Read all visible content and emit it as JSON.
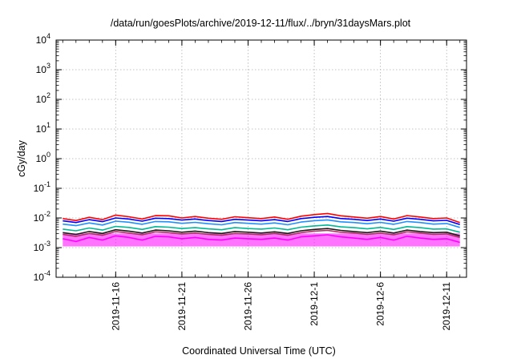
{
  "chart_data": {
    "type": "line",
    "title": "/data/run/goesPlots/archive/2019-12-11/flux/../bryn/31daysMars.plot",
    "xlabel": "Coordinated Universal Time (UTC)",
    "ylabel": "cGy/day",
    "yscale": "log",
    "ylim": [
      0.0001,
      10000
    ],
    "xlim": [
      "2019-11-11T12:00",
      "2019-12-12T12:00"
    ],
    "grid": true,
    "legend": "none",
    "x_ticks": [
      "2019-11-16",
      "2019-11-21",
      "2019-11-26",
      "2019-12-1",
      "2019-12-6",
      "2019-12-11"
    ],
    "y_ticks": [
      {
        "base": "10",
        "exp": "-4",
        "value": 0.0001
      },
      {
        "base": "10",
        "exp": "-3",
        "value": 0.001
      },
      {
        "base": "10",
        "exp": "-2",
        "value": 0.01
      },
      {
        "base": "10",
        "exp": "-1",
        "value": 0.1
      },
      {
        "base": "10",
        "exp": "0",
        "value": 1
      },
      {
        "base": "10",
        "exp": "1",
        "value": 10
      },
      {
        "base": "10",
        "exp": "2",
        "value": 100
      },
      {
        "base": "10",
        "exp": "3",
        "value": 1000
      },
      {
        "base": "10",
        "exp": "4",
        "value": 10000
      }
    ],
    "x_dates": [
      "2019-11-12",
      "2019-11-13",
      "2019-11-14",
      "2019-11-15",
      "2019-11-16",
      "2019-11-17",
      "2019-11-18",
      "2019-11-19",
      "2019-11-20",
      "2019-11-21",
      "2019-11-22",
      "2019-11-23",
      "2019-11-24",
      "2019-11-25",
      "2019-11-26",
      "2019-11-27",
      "2019-11-28",
      "2019-11-29",
      "2019-11-30",
      "2019-12-01",
      "2019-12-02",
      "2019-12-03",
      "2019-12-04",
      "2019-12-05",
      "2019-12-06",
      "2019-12-07",
      "2019-12-08",
      "2019-12-09",
      "2019-12-10",
      "2019-12-11",
      "2019-12-12"
    ],
    "series": [
      {
        "color": "#ff0000",
        "values": [
          0.0095,
          0.0082,
          0.0105,
          0.0088,
          0.0125,
          0.011,
          0.0092,
          0.012,
          0.0118,
          0.01,
          0.0112,
          0.0098,
          0.009,
          0.011,
          0.0102,
          0.0095,
          0.0108,
          0.009,
          0.0115,
          0.013,
          0.0142,
          0.0118,
          0.0108,
          0.0098,
          0.0112,
          0.0092,
          0.012,
          0.0108,
          0.0095,
          0.01,
          0.007
        ]
      },
      {
        "color": "#0000ff",
        "values": [
          0.008,
          0.007,
          0.0088,
          0.0075,
          0.01,
          0.0092,
          0.0078,
          0.0098,
          0.0095,
          0.0085,
          0.0092,
          0.0082,
          0.0076,
          0.009,
          0.0085,
          0.008,
          0.0088,
          0.0076,
          0.0095,
          0.0105,
          0.0112,
          0.0096,
          0.009,
          0.0082,
          0.0092,
          0.0078,
          0.0098,
          0.009,
          0.008,
          0.0083,
          0.006
        ]
      },
      {
        "color": "#1e90ff",
        "values": [
          0.0062,
          0.0055,
          0.0068,
          0.0058,
          0.0078,
          0.0072,
          0.0061,
          0.0076,
          0.0074,
          0.0066,
          0.0071,
          0.0064,
          0.0059,
          0.007,
          0.0066,
          0.0062,
          0.0068,
          0.0059,
          0.0073,
          0.0081,
          0.0086,
          0.0074,
          0.007,
          0.0064,
          0.0071,
          0.0061,
          0.0076,
          0.007,
          0.0062,
          0.0065,
          0.0048
        ]
      },
      {
        "color": "#00b894",
        "values": [
          0.0042,
          0.0037,
          0.0046,
          0.0039,
          0.0052,
          0.0048,
          0.0041,
          0.0051,
          0.0049,
          0.0044,
          0.0047,
          0.0043,
          0.004,
          0.0047,
          0.0044,
          0.0042,
          0.0046,
          0.004,
          0.0049,
          0.0054,
          0.0058,
          0.005,
          0.0047,
          0.0043,
          0.0048,
          0.0041,
          0.0051,
          0.0047,
          0.0042,
          0.0043,
          0.0033
        ]
      },
      {
        "color": "#1a1a1a",
        "values": [
          0.0032,
          0.0028,
          0.0035,
          0.003,
          0.004,
          0.0036,
          0.0031,
          0.0039,
          0.0037,
          0.0033,
          0.0036,
          0.0032,
          0.003,
          0.0035,
          0.0033,
          0.0031,
          0.0034,
          0.003,
          0.0037,
          0.0041,
          0.0044,
          0.0038,
          0.0035,
          0.0032,
          0.0036,
          0.0031,
          0.0039,
          0.0035,
          0.0032,
          0.0033,
          0.0025
        ]
      },
      {
        "color": "#b03060",
        "values": [
          0.0028,
          0.0024,
          0.003,
          0.0026,
          0.0035,
          0.0031,
          0.0027,
          0.0034,
          0.0032,
          0.0029,
          0.0031,
          0.0028,
          0.0026,
          0.003,
          0.0029,
          0.0027,
          0.003,
          0.0026,
          0.0032,
          0.0036,
          0.0038,
          0.0033,
          0.0031,
          0.0028,
          0.0031,
          0.0027,
          0.0034,
          0.0031,
          0.0028,
          0.0029,
          0.0022
        ]
      },
      {
        "color": "#ff00ff",
        "values": [
          0.002,
          0.0016,
          0.0022,
          0.0018,
          0.0025,
          0.0022,
          0.0018,
          0.0024,
          0.0023,
          0.002,
          0.0022,
          0.0019,
          0.0018,
          0.0021,
          0.002,
          0.0019,
          0.0021,
          0.0018,
          0.0023,
          0.0025,
          0.0027,
          0.0023,
          0.0021,
          0.0019,
          0.0022,
          0.0018,
          0.0024,
          0.0021,
          0.0019,
          0.002,
          0.0015
        ]
      }
    ],
    "band": {
      "color": "#ff00ff",
      "low": 0.0011,
      "high": 0.003
    }
  }
}
